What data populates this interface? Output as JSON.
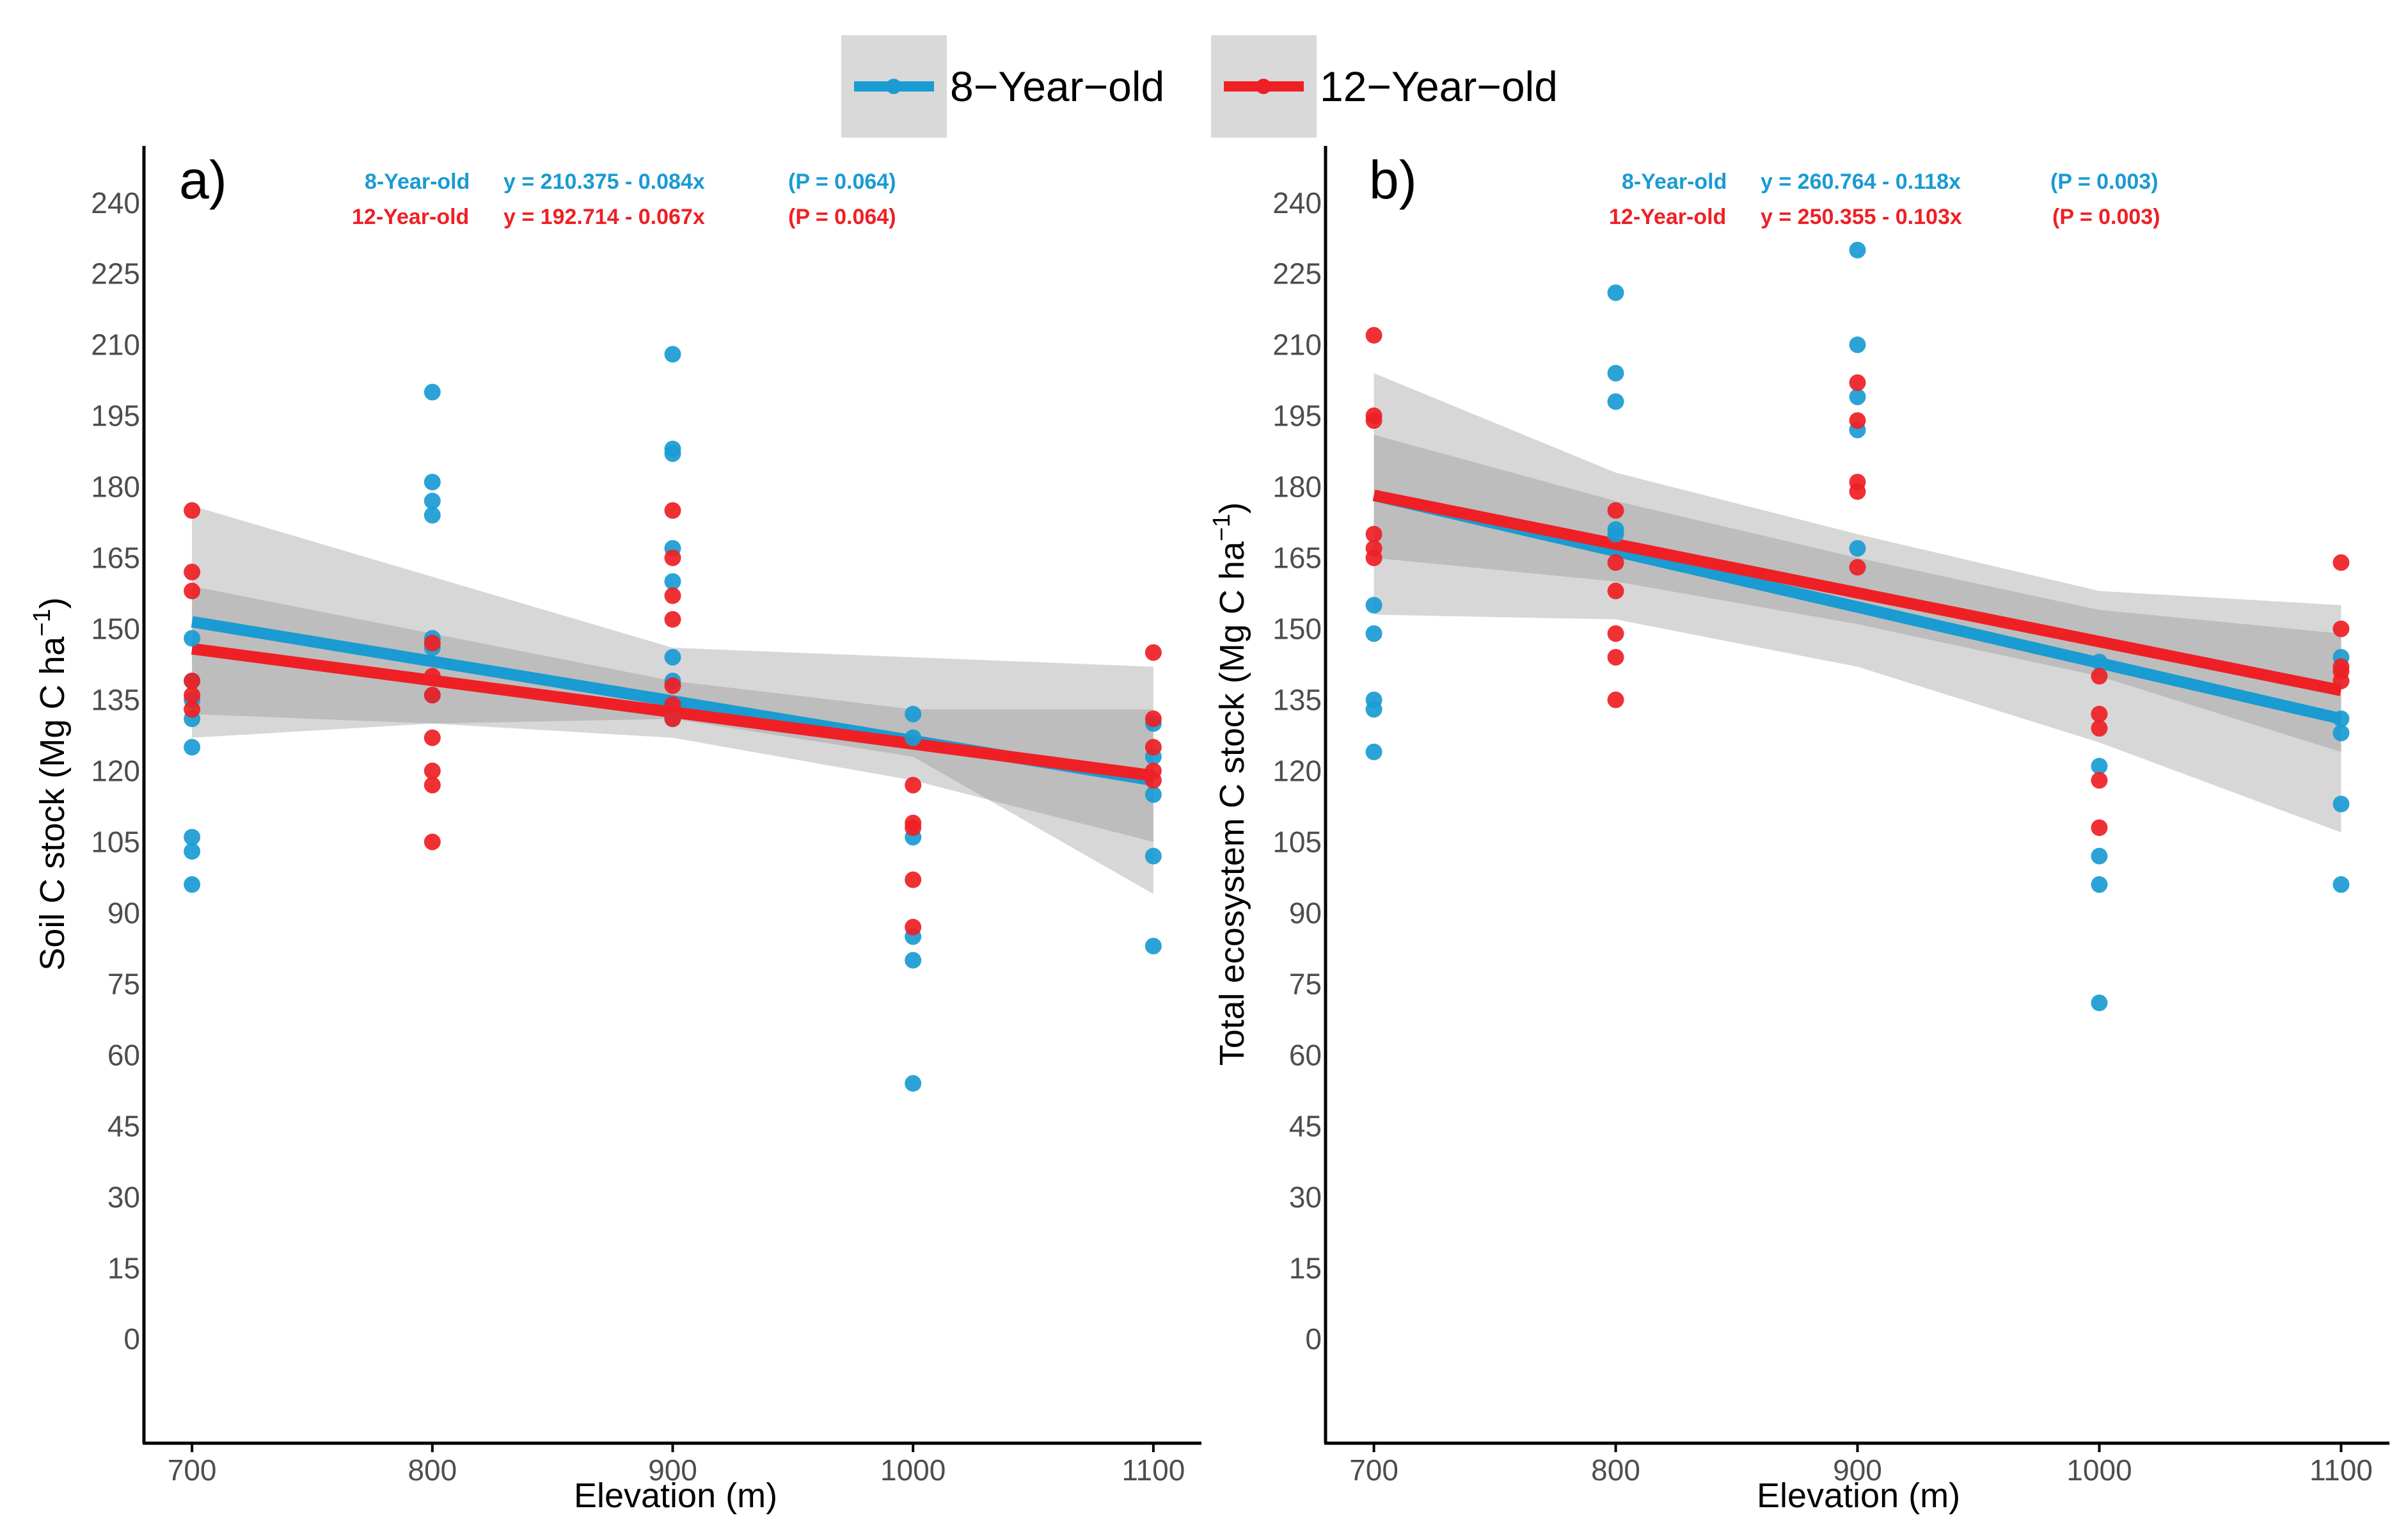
{
  "colors": {
    "series_8": "#1a9bd2",
    "series_12": "#ee2025",
    "band_light": "#bdbdbd",
    "band_dark": "#7f7f7f",
    "legend_bg": "#d9d9d9",
    "axis": "#000000"
  },
  "legend": {
    "items": [
      {
        "label": "8−Year−old",
        "color": "#1a9bd2"
      },
      {
        "label": "12−Year−old",
        "color": "#ee2025"
      }
    ],
    "position": "top-center"
  },
  "chart_data": [
    {
      "type": "scatter",
      "panel_label": "a)",
      "xlabel": "Elevation (m)",
      "ylabel": "Soil C stock (Mg C ha",
      "ylabel_sup": "−1",
      "ylabel_close": ")",
      "xlim": [
        680,
        1120
      ],
      "ylim": [
        -22,
        252
      ],
      "x_ticks": [
        700,
        800,
        900,
        1000,
        1100
      ],
      "x_tick_labels": [
        "700",
        "800",
        "900",
        "1000",
        "1100"
      ],
      "y_ticks": [
        0,
        15,
        30,
        45,
        60,
        75,
        90,
        105,
        120,
        135,
        150,
        165,
        180,
        195,
        210,
        225,
        240
      ],
      "y_tick_labels": [
        "0",
        "15",
        "30",
        "45",
        "60",
        "75",
        "90",
        "105",
        "120",
        "135",
        "150",
        "165",
        "180",
        "195",
        "210",
        "225",
        "240"
      ],
      "grid": false,
      "equations": [
        {
          "series": "8-Year-old",
          "label": "8-Year-old",
          "equation": "y = 210.375 - 0.084x",
          "p": "(P = 0.064)",
          "color": "#1a9bd2"
        },
        {
          "series": "12-Year-old",
          "label": "12-Year-old",
          "equation": "y = 192.714 - 0.067x",
          "p": "(P = 0.064)",
          "color": "#ee2025"
        }
      ],
      "series": [
        {
          "name": "8-Year-old",
          "color": "#1a9bd2",
          "points": [
            [
              700,
              148
            ],
            [
              700,
              139
            ],
            [
              700,
              135
            ],
            [
              700,
              131
            ],
            [
              700,
              125
            ],
            [
              700,
              106
            ],
            [
              700,
              103
            ],
            [
              700,
              96
            ],
            [
              800,
              200
            ],
            [
              800,
              181
            ],
            [
              800,
              177
            ],
            [
              800,
              174
            ],
            [
              800,
              148
            ],
            [
              800,
              146
            ],
            [
              800,
              136
            ],
            [
              900,
              208
            ],
            [
              900,
              188
            ],
            [
              900,
              187
            ],
            [
              900,
              167
            ],
            [
              900,
              160
            ],
            [
              900,
              144
            ],
            [
              900,
              139
            ],
            [
              900,
              131
            ],
            [
              1000,
              132
            ],
            [
              1000,
              127
            ],
            [
              1000,
              106
            ],
            [
              1000,
              85
            ],
            [
              1000,
              80
            ],
            [
              1000,
              54
            ],
            [
              1100,
              130
            ],
            [
              1100,
              123
            ],
            [
              1100,
              115
            ],
            [
              1100,
              102
            ],
            [
              1100,
              83
            ]
          ],
          "fit": {
            "x": [
              700,
              1100
            ],
            "y": [
              151.5,
              118.0
            ]
          },
          "ci": {
            "x": [
              700,
              800,
              900,
              1000,
              1100
            ],
            "lower": [
              127,
              130,
              131,
              123,
              94
            ],
            "upper": [
              176,
              161,
              146,
              144,
              142
            ]
          }
        },
        {
          "name": "12-Year-old",
          "color": "#ee2025",
          "points": [
            [
              700,
              175
            ],
            [
              700,
              162
            ],
            [
              700,
              158
            ],
            [
              700,
              139
            ],
            [
              700,
              136
            ],
            [
              700,
              133
            ],
            [
              800,
              147
            ],
            [
              800,
              140
            ],
            [
              800,
              136
            ],
            [
              800,
              127
            ],
            [
              800,
              120
            ],
            [
              800,
              117
            ],
            [
              800,
              105
            ],
            [
              900,
              175
            ],
            [
              900,
              165
            ],
            [
              900,
              157
            ],
            [
              900,
              152
            ],
            [
              900,
              138
            ],
            [
              900,
              134
            ],
            [
              900,
              131
            ],
            [
              1000,
              117
            ],
            [
              1000,
              109
            ],
            [
              1000,
              108
            ],
            [
              1000,
              97
            ],
            [
              1000,
              87
            ],
            [
              1100,
              145
            ],
            [
              1100,
              131
            ],
            [
              1100,
              125
            ],
            [
              1100,
              120
            ],
            [
              1100,
              118
            ]
          ],
          "fit": {
            "x": [
              700,
              1100
            ],
            "y": [
              145.8,
              119.0
            ]
          },
          "ci": {
            "x": [
              700,
              800,
              900,
              1000,
              1100
            ],
            "lower": [
              132,
              130,
              127,
              118,
              105
            ],
            "upper": [
              159,
              149,
              139,
              133,
              133
            ]
          }
        }
      ]
    },
    {
      "type": "scatter",
      "panel_label": "b)",
      "xlabel": "Elevation (m)",
      "ylabel": "Total ecosystem C stock (Mg C ha",
      "ylabel_sup": "−1",
      "ylabel_close": ")",
      "xlim": [
        680,
        1120
      ],
      "ylim": [
        -22,
        252
      ],
      "x_ticks": [
        700,
        800,
        900,
        1000,
        1100
      ],
      "x_tick_labels": [
        "700",
        "800",
        "900",
        "1000",
        "1100"
      ],
      "y_ticks": [
        0,
        15,
        30,
        45,
        60,
        75,
        90,
        105,
        120,
        135,
        150,
        165,
        180,
        195,
        210,
        225,
        240
      ],
      "y_tick_labels": [
        "0",
        "15",
        "30",
        "45",
        "60",
        "75",
        "90",
        "105",
        "120",
        "135",
        "150",
        "165",
        "180",
        "195",
        "210",
        "225",
        "240"
      ],
      "grid": false,
      "equations": [
        {
          "series": "8-Year-old",
          "label": "8-Year-old",
          "equation": "y = 260.764 - 0.118x",
          "p": "(P = 0.003)",
          "color": "#1a9bd2"
        },
        {
          "series": "12-Year-old",
          "label": "12-Year-old",
          "equation": "y = 250.355 - 0.103x",
          "p": "(P = 0.003)",
          "color": "#ee2025"
        }
      ],
      "series": [
        {
          "name": "8-Year-old",
          "color": "#1a9bd2",
          "points": [
            [
              700,
              155
            ],
            [
              700,
              149
            ],
            [
              700,
              135
            ],
            [
              700,
              133
            ],
            [
              700,
              124
            ],
            [
              800,
              221
            ],
            [
              800,
              204
            ],
            [
              800,
              198
            ],
            [
              800,
              171
            ],
            [
              800,
              170
            ],
            [
              900,
              230
            ],
            [
              900,
              210
            ],
            [
              900,
              199
            ],
            [
              900,
              192
            ],
            [
              900,
              167
            ],
            [
              1000,
              143
            ],
            [
              1000,
              121
            ],
            [
              1000,
              102
            ],
            [
              1000,
              96
            ],
            [
              1000,
              71
            ],
            [
              1100,
              144
            ],
            [
              1100,
              131
            ],
            [
              1100,
              128
            ],
            [
              1100,
              113
            ],
            [
              1100,
              96
            ]
          ],
          "fit": {
            "x": [
              700,
              1100
            ],
            "y": [
              178.2,
              131.0
            ]
          },
          "ci": {
            "x": [
              700,
              800,
              900,
              1000,
              1100
            ],
            "lower": [
              153,
              152,
              142,
              126,
              107
            ],
            "upper": [
              204,
              183,
              170,
              158,
              155
            ]
          }
        },
        {
          "name": "12-Year-old",
          "color": "#ee2025",
          "points": [
            [
              700,
              212
            ],
            [
              700,
              195
            ],
            [
              700,
              194
            ],
            [
              700,
              170
            ],
            [
              700,
              167
            ],
            [
              700,
              165
            ],
            [
              800,
              175
            ],
            [
              800,
              164
            ],
            [
              800,
              158
            ],
            [
              800,
              149
            ],
            [
              800,
              144
            ],
            [
              800,
              135
            ],
            [
              900,
              202
            ],
            [
              900,
              194
            ],
            [
              900,
              181
            ],
            [
              900,
              179
            ],
            [
              900,
              163
            ],
            [
              1000,
              140
            ],
            [
              1000,
              132
            ],
            [
              1000,
              129
            ],
            [
              1000,
              118
            ],
            [
              1000,
              108
            ],
            [
              1100,
              164
            ],
            [
              1100,
              150
            ],
            [
              1100,
              142
            ],
            [
              1100,
              141
            ],
            [
              1100,
              139
            ]
          ],
          "fit": {
            "x": [
              700,
              1100
            ],
            "y": [
              178.2,
              137.0
            ]
          },
          "ci": {
            "x": [
              700,
              800,
              900,
              1000,
              1100
            ],
            "lower": [
              165,
              160,
              151,
              140,
              124
            ],
            "upper": [
              191,
              177,
              165,
              154,
              149
            ]
          }
        }
      ]
    }
  ]
}
